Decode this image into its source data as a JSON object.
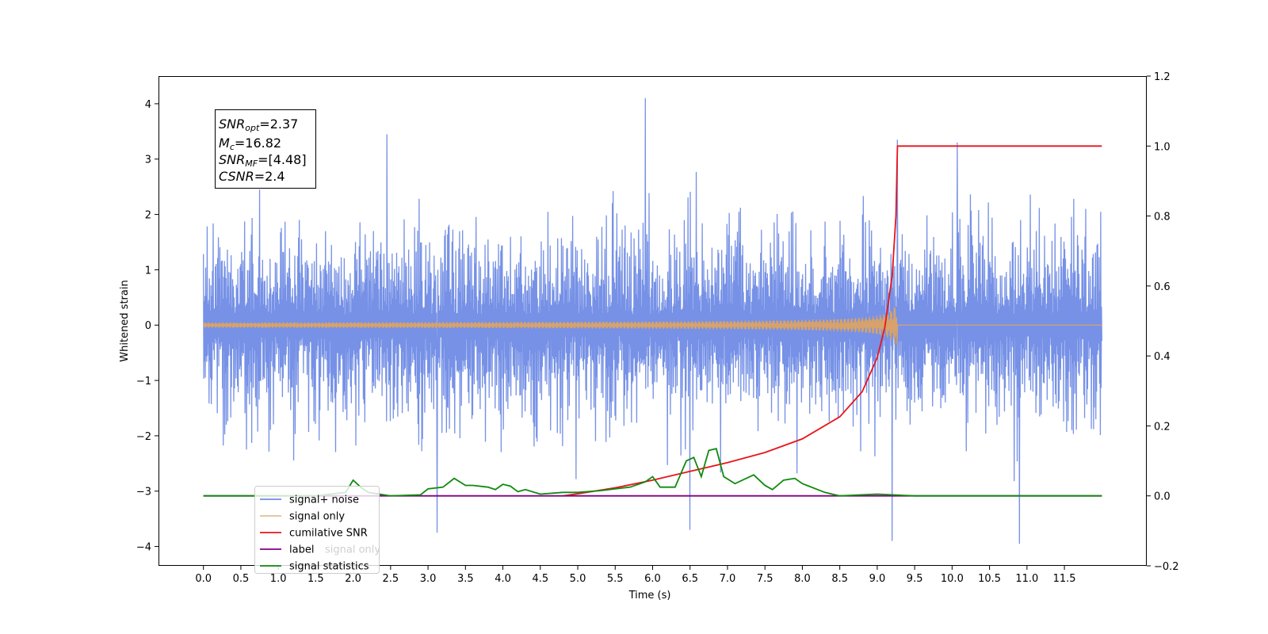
{
  "chart_data": {
    "type": "line",
    "xlabel": "Time (s)",
    "ylabel_left": "Whitened strain",
    "ylabel_right": "",
    "xlim": [
      -0.6,
      12.6
    ],
    "ylim_left": [
      -4.35,
      4.5
    ],
    "ylim_right": [
      -0.2,
      1.2
    ],
    "x_ticks": [
      "0.0",
      "0.5",
      "1.0",
      "1.5",
      "2.0",
      "2.5",
      "3.0",
      "3.5",
      "4.0",
      "4.5",
      "5.0",
      "5.5",
      "6.0",
      "6.5",
      "7.0",
      "7.5",
      "8.0",
      "8.5",
      "9.0",
      "9.5",
      "10.0",
      "10.5",
      "11.0",
      "11.5"
    ],
    "y_ticks_left": [
      "4",
      "3",
      "2",
      "1",
      "0",
      "−1",
      "−2",
      "−3",
      "−4"
    ],
    "y_ticks_right": [
      "1.2",
      "1.0",
      "0.8",
      "0.6",
      "0.4",
      "0.2",
      "0.0",
      "−0.2"
    ],
    "grid": false,
    "legend_position": "lower-left",
    "info_box": {
      "line1": "SNR",
      "line1_sub": "opt",
      "line1_val": "=2.37",
      "line2": "M",
      "line2_sub": "c",
      "line2_val": "=16.82",
      "line3": "SNR",
      "line3_sub": "MF",
      "line3_val": "=[4.48]",
      "line4": "CSNR",
      "line4_val": "=2.4"
    },
    "series": [
      {
        "name": "signal+ noise",
        "axis": "left",
        "color": "#6f8be5",
        "description_range": [
          0.0,
          12.0
        ],
        "amplitude_typical": 1.6,
        "peaks": [
          {
            "x": 5.9,
            "y": 4.1
          },
          {
            "x": 9.27,
            "y": 3.35
          },
          {
            "x": 10.07,
            "y": 3.3
          },
          {
            "x": 2.45,
            "y": 3.45
          },
          {
            "x": 3.12,
            "y": -3.75
          },
          {
            "x": 9.2,
            "y": -3.9
          },
          {
            "x": 10.9,
            "y": -3.95
          },
          {
            "x": 6.5,
            "y": -3.7
          }
        ]
      },
      {
        "name": "signal only",
        "axis": "left",
        "color": "#d7a26b",
        "chirp_end": 9.27,
        "peak_amplitude": 0.55
      },
      {
        "name": "cumilative SNR",
        "axis": "right",
        "color": "#e8141b",
        "x": [
          4.8,
          5.0,
          5.5,
          6.0,
          6.5,
          7.0,
          7.5,
          8.0,
          8.5,
          8.8,
          9.0,
          9.1,
          9.2,
          9.25,
          9.27,
          11.5,
          12.0
        ],
        "values": [
          0.0,
          0.006,
          0.023,
          0.045,
          0.07,
          0.095,
          0.124,
          0.163,
          0.226,
          0.298,
          0.395,
          0.48,
          0.63,
          0.8,
          1.0,
          1.0,
          1.0
        ]
      },
      {
        "name": "label",
        "axis": "right",
        "color": "#800080",
        "x": [
          0.0,
          12.0
        ],
        "values": [
          0.0,
          0.0
        ]
      },
      {
        "name": "signal statistics",
        "axis": "right",
        "color": "#0f8a0f",
        "x": [
          0.0,
          1.5,
          1.9,
          2.0,
          2.1,
          2.2,
          2.5,
          2.9,
          3.0,
          3.2,
          3.35,
          3.5,
          3.6,
          3.8,
          3.9,
          4.0,
          4.1,
          4.2,
          4.3,
          4.5,
          4.8,
          5.0,
          5.3,
          5.5,
          5.7,
          5.9,
          6.0,
          6.1,
          6.3,
          6.45,
          6.55,
          6.65,
          6.75,
          6.85,
          6.95,
          7.1,
          7.3,
          7.35,
          7.5,
          7.6,
          7.75,
          7.9,
          8.0,
          8.3,
          8.5,
          9.0,
          9.5,
          12.0
        ],
        "values": [
          0.0,
          0.0,
          0.01,
          0.045,
          0.025,
          0.01,
          0.0,
          0.003,
          0.02,
          0.025,
          0.05,
          0.03,
          0.03,
          0.025,
          0.018,
          0.033,
          0.028,
          0.012,
          0.018,
          0.005,
          0.01,
          0.01,
          0.015,
          0.02,
          0.025,
          0.04,
          0.055,
          0.025,
          0.025,
          0.1,
          0.11,
          0.055,
          0.13,
          0.135,
          0.055,
          0.035,
          0.055,
          0.06,
          0.03,
          0.018,
          0.045,
          0.05,
          0.035,
          0.01,
          0.0,
          0.005,
          0.0,
          0.0
        ]
      },
      {
        "name": "signal only",
        "axis": "none",
        "color": "none",
        "x": [],
        "values": []
      }
    ]
  }
}
